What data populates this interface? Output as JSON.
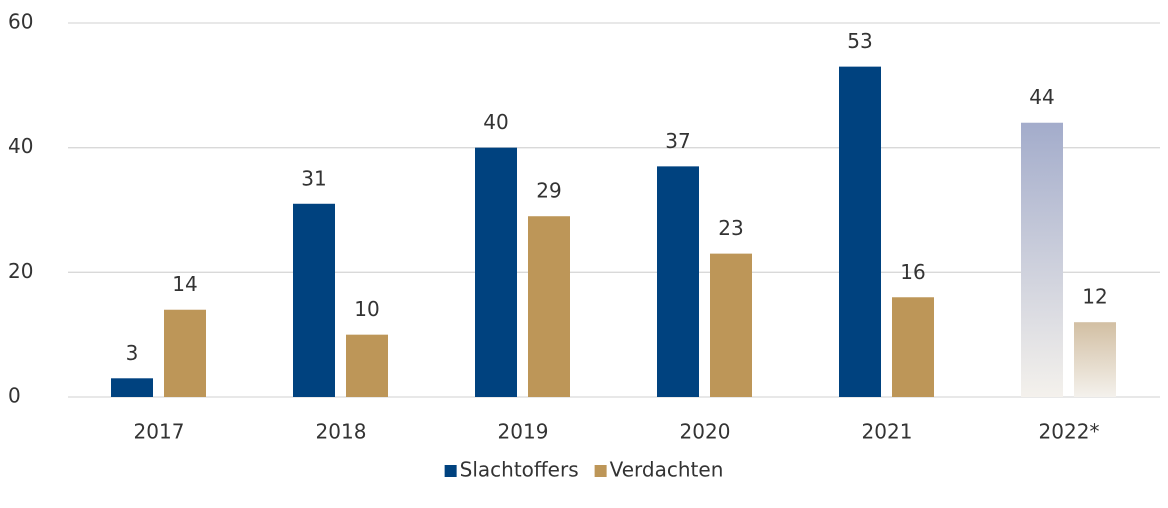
{
  "chart_data": {
    "type": "bar",
    "categories": [
      "2017",
      "2018",
      "2019",
      "2020",
      "2021",
      "2022*"
    ],
    "series": [
      {
        "name": "Slachtoffers",
        "color": "#00427f",
        "colors": [
          "#00427f",
          "#00427f",
          "#00427f",
          "#00427f",
          "#00427f",
          "#a3accb"
        ],
        "values": [
          3,
          31,
          40,
          37,
          53,
          44
        ]
      },
      {
        "name": "Verdachten",
        "color": "#bd9658",
        "colors": [
          "#bd9658",
          "#bd9658",
          "#bd9658",
          "#bd9658",
          "#bd9658",
          "#d2bfa3"
        ],
        "values": [
          14,
          10,
          29,
          23,
          16,
          12
        ]
      }
    ],
    "ylim": [
      0,
      60
    ],
    "yticks": [
      0,
      20,
      40,
      60
    ],
    "grid": true,
    "legend": "bottom"
  }
}
